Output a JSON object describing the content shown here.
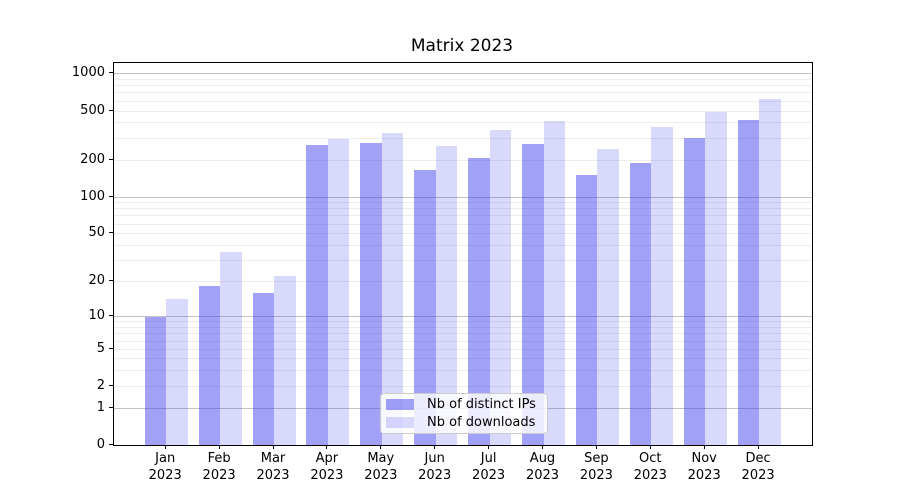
{
  "title": "Matrix 2023",
  "chart_data": {
    "type": "bar",
    "title": "Matrix 2023",
    "y_scale": "log (symlog with 0 baseline)",
    "grid": "on",
    "legend_position": "lower center",
    "ylim": [
      0,
      1200
    ],
    "y_ticks": [
      0,
      1,
      2,
      5,
      10,
      20,
      50,
      100,
      200,
      500,
      1000
    ],
    "major_grid_values": [
      1,
      10,
      100,
      1000
    ],
    "minor_grid_values": [
      2,
      3,
      4,
      5,
      6,
      7,
      8,
      9,
      20,
      30,
      40,
      50,
      60,
      70,
      80,
      90,
      200,
      300,
      400,
      500,
      600,
      700,
      800,
      900
    ],
    "x_year": "2023",
    "x_months": [
      "Jan",
      "Feb",
      "Mar",
      "Apr",
      "May",
      "Jun",
      "Jul",
      "Aug",
      "Sep",
      "Oct",
      "Nov",
      "Dec"
    ],
    "categories": [
      "Jan 2023",
      "Feb 2023",
      "Mar 2023",
      "Apr 2023",
      "May 2023",
      "Jun 2023",
      "Jul 2023",
      "Aug 2023",
      "Sep 2023",
      "Oct 2023",
      "Nov 2023",
      "Dec 2023"
    ],
    "series": [
      {
        "name": "Nb of distinct IPs",
        "key": "distinct-ips",
        "color_hex": "#a4a4f2",
        "color_rgba": "rgba(55,55,238,0.47)",
        "values": [
          10,
          18,
          16,
          265,
          276,
          165,
          206,
          268,
          151,
          190,
          300,
          420
        ]
      },
      {
        "name": "Nb of downloads",
        "key": "downloads",
        "color_hex": "#d9d9fa",
        "color_rgba": "rgba(55,55,238,0.19)",
        "values": [
          14,
          35,
          22,
          298,
          330,
          260,
          348,
          415,
          245,
          370,
          490,
          620
        ]
      }
    ],
    "colors": {
      "major_grid": "#c3c3c3",
      "minor_grid": "#ededed",
      "axis": "#000000",
      "legend_border": "#cccccc"
    }
  }
}
